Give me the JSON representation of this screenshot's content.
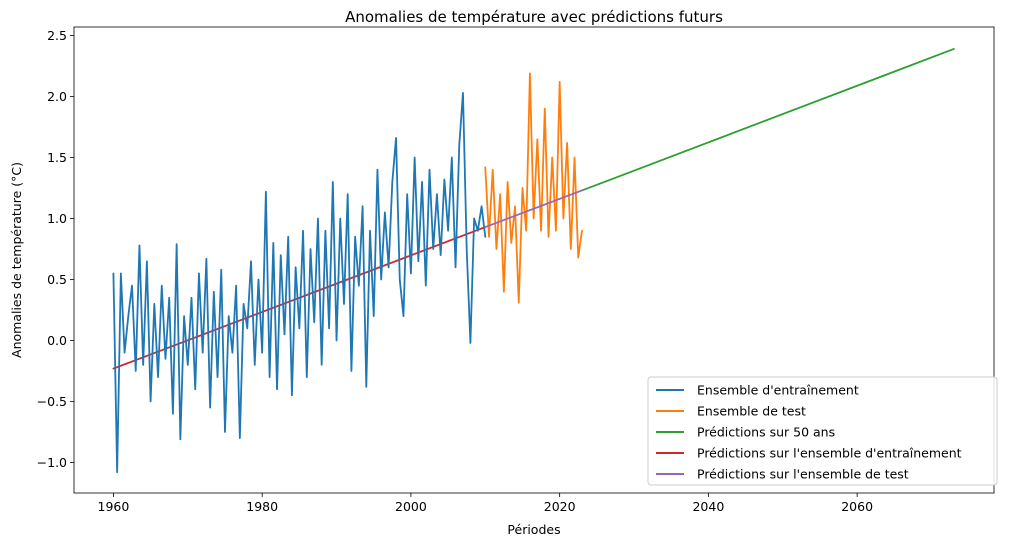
{
  "chart_data": {
    "type": "line",
    "title": "Anomalies de température avec prédictions futurs",
    "xlabel": "Périodes",
    "ylabel": "Anomalies de température (°C)",
    "xlim": [
      1954.7,
      2078.4
    ],
    "ylim": [
      -1.25,
      2.57
    ],
    "xticks": [
      1960,
      1980,
      2000,
      2020,
      2040,
      2060
    ],
    "yticks": [
      -1.0,
      -0.5,
      0.0,
      0.5,
      1.0,
      1.5,
      2.0,
      2.5
    ],
    "ytick_labels": [
      "−1.0",
      "−0.5",
      "0.0",
      "0.5",
      "1.0",
      "1.5",
      "2.0",
      "2.5"
    ],
    "grid": false,
    "legend_position": "lower-right",
    "colors": {
      "train": "#1f77b4",
      "test": "#ff7f0e",
      "forecast": "#2ca02c",
      "train_pred": "#d62728",
      "test_pred": "#9467bd"
    },
    "series": [
      {
        "name": "Ensemble d'entraînement",
        "key": "train",
        "kind": "line",
        "x": [
          1960,
          1960.5,
          1961,
          1961.5,
          1962,
          1962.5,
          1963,
          1963.5,
          1964,
          1964.5,
          1965,
          1965.5,
          1966,
          1966.5,
          1967,
          1967.5,
          1968,
          1968.5,
          1969,
          1969.5,
          1970,
          1970.5,
          1971,
          1971.5,
          1972,
          1972.5,
          1973,
          1973.5,
          1974,
          1974.5,
          1975,
          1975.5,
          1976,
          1976.5,
          1977,
          1977.5,
          1978,
          1978.5,
          1979,
          1979.5,
          1980,
          1980.5,
          1981,
          1981.5,
          1982,
          1982.5,
          1983,
          1983.5,
          1984,
          1984.5,
          1985,
          1985.5,
          1986,
          1986.5,
          1987,
          1987.5,
          1988,
          1988.5,
          1989,
          1989.5,
          1990,
          1990.5,
          1991,
          1991.5,
          1992,
          1992.5,
          1993,
          1993.5,
          1994,
          1994.5,
          1995,
          1995.5,
          1996,
          1996.5,
          1997,
          1997.5,
          1998,
          1998.5,
          1999,
          1999.5,
          2000,
          2000.5,
          2001,
          2001.5,
          2002,
          2002.5,
          2003,
          2003.5,
          2004,
          2004.5,
          2005,
          2005.5,
          2006,
          2006.5,
          2007,
          2007.5,
          2008,
          2008.5,
          2009,
          2009.5,
          2010
        ],
        "y": [
          0.55,
          -1.08,
          0.55,
          -0.1,
          0.2,
          0.45,
          -0.25,
          0.78,
          -0.2,
          0.65,
          -0.5,
          0.3,
          -0.3,
          0.45,
          -0.15,
          0.35,
          -0.6,
          0.79,
          -0.81,
          0.2,
          -0.2,
          0.35,
          -0.4,
          0.55,
          -0.1,
          0.67,
          -0.55,
          0.4,
          -0.3,
          0.58,
          -0.75,
          0.2,
          -0.1,
          0.45,
          -0.8,
          0.3,
          0.1,
          0.65,
          -0.2,
          0.5,
          -0.1,
          1.22,
          -0.3,
          0.8,
          -0.4,
          0.7,
          0.05,
          0.85,
          -0.45,
          0.6,
          0.1,
          0.9,
          -0.3,
          0.75,
          0.15,
          1.0,
          -0.2,
          0.9,
          0.1,
          1.3,
          0.0,
          1.0,
          0.3,
          1.2,
          -0.25,
          0.85,
          0.45,
          1.1,
          -0.38,
          0.9,
          0.2,
          1.4,
          0.5,
          1.05,
          0.6,
          1.3,
          1.66,
          0.5,
          0.2,
          1.2,
          0.55,
          1.5,
          0.65,
          1.3,
          0.45,
          1.4,
          0.75,
          1.2,
          0.7,
          1.32,
          0.9,
          1.5,
          0.6,
          1.6,
          2.03,
          0.75,
          -0.02,
          1.0,
          0.9,
          1.1,
          0.85
        ]
      },
      {
        "name": "Ensemble de test",
        "key": "test",
        "kind": "line",
        "x": [
          2010,
          2010.5,
          2011,
          2011.5,
          2012,
          2012.5,
          2013,
          2013.5,
          2014,
          2014.5,
          2015,
          2015.5,
          2016,
          2016.5,
          2017,
          2017.5,
          2018,
          2018.5,
          2019,
          2019.5,
          2020,
          2020.5,
          2021,
          2021.5,
          2022,
          2022.5,
          2023
        ],
        "y": [
          1.42,
          0.85,
          1.4,
          0.75,
          1.2,
          0.4,
          1.3,
          0.8,
          1.1,
          0.31,
          1.25,
          0.9,
          2.19,
          1.0,
          1.65,
          0.9,
          1.9,
          0.85,
          1.5,
          0.9,
          2.12,
          1.0,
          1.62,
          0.75,
          1.5,
          0.68,
          0.9
        ]
      },
      {
        "name": "Prédictions sur 50 ans",
        "key": "forecast",
        "kind": "linear",
        "x": [
          2023,
          2073
        ],
        "y": [
          1.23,
          2.39
        ]
      },
      {
        "name": "Prédictions sur l'ensemble d'entraînement",
        "key": "train_pred",
        "kind": "linear",
        "x": [
          1960,
          2010
        ],
        "y": [
          -0.23,
          0.93
        ]
      },
      {
        "name": "Prédictions sur l'ensemble de test",
        "key": "test_pred",
        "kind": "linear",
        "x": [
          2010,
          2023
        ],
        "y": [
          0.93,
          1.23
        ]
      }
    ]
  }
}
